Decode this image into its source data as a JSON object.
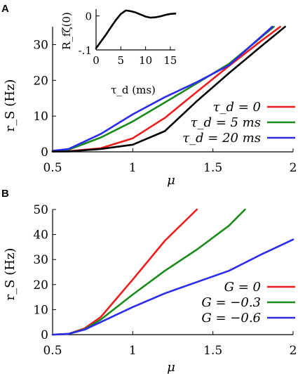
{
  "chart_data": [
    {
      "panel": "A",
      "type": "line",
      "xlabel": "μ",
      "ylabel": "r_S (Hz)",
      "xlim": [
        0.5,
        2
      ],
      "ylim": [
        0,
        35
      ],
      "xticks": [
        0.5,
        1,
        1.5,
        2
      ],
      "xtick_labels": [
        "0.5",
        "1",
        "1.5",
        "2"
      ],
      "yticks": [
        0,
        10,
        20,
        30
      ],
      "ytick_labels": [
        "0",
        "10",
        "20",
        "30"
      ],
      "legend_position": "right",
      "series": [
        {
          "name": "τ_d = 0",
          "color": "#ee1c1c",
          "x": [
            0.5,
            0.6,
            0.8,
            1.0,
            1.2,
            1.4,
            1.6,
            1.8,
            1.92
          ],
          "y": [
            0.1,
            0.2,
            1.0,
            3.8,
            9.5,
            16.8,
            24.0,
            31.0,
            35.0
          ]
        },
        {
          "name": "τ_d = 5 ms",
          "color": "#1a8a1a",
          "x": [
            0.5,
            0.6,
            0.8,
            1.0,
            1.2,
            1.4,
            1.6,
            1.88
          ],
          "y": [
            0.2,
            0.6,
            4.0,
            8.5,
            13.8,
            19.2,
            24.6,
            35.0
          ]
        },
        {
          "name": "τ_d = 20 ms",
          "color": "#2b2bee",
          "x": [
            0.5,
            0.6,
            0.8,
            1.0,
            1.2,
            1.4,
            1.6,
            1.87
          ],
          "y": [
            0.3,
            0.8,
            5.0,
            10.5,
            15.3,
            19.5,
            24.2,
            35.0
          ]
        },
        {
          "name": "",
          "color": "#000000",
          "x": [
            0.5,
            0.6,
            0.8,
            1.0,
            1.2,
            1.4,
            1.6,
            1.8,
            1.95
          ],
          "y": [
            0.1,
            0.1,
            0.8,
            2.0,
            5.8,
            14.2,
            22.0,
            29.5,
            35.0
          ]
        }
      ]
    },
    {
      "panel": "A-inset",
      "type": "line",
      "xlabel": "τ_d (ms)",
      "ylabel": "R_fζ(0)",
      "xlim": [
        0,
        16
      ],
      "ylim": [
        -0.1,
        0.02
      ],
      "xticks": [
        0,
        5,
        10,
        15
      ],
      "xtick_labels": [
        "0",
        "5",
        "10",
        "15"
      ],
      "yticks": [
        -0.1,
        0
      ],
      "ytick_labels": [
        "-.1",
        "0"
      ],
      "series": [
        {
          "color": "#000000",
          "x": [
            0,
            1,
            2,
            3,
            4,
            5,
            6,
            7,
            8,
            9,
            10,
            11,
            12,
            13,
            14,
            15,
            16
          ],
          "y": [
            -0.095,
            -0.075,
            -0.055,
            -0.033,
            -0.012,
            0.006,
            0.016,
            0.014,
            0.01,
            0.004,
            -0.002,
            -0.005,
            -0.004,
            -0.001,
            0.003,
            0.006,
            0.007
          ]
        }
      ]
    },
    {
      "panel": "B",
      "type": "line",
      "xlabel": "μ",
      "ylabel": "r_S (Hz)",
      "xlim": [
        0.5,
        2
      ],
      "ylim": [
        0,
        50
      ],
      "xticks": [
        0.5,
        1,
        1.5,
        2
      ],
      "xtick_labels": [
        "0.5",
        "1",
        "1.5",
        "2"
      ],
      "yticks": [
        0,
        10,
        20,
        30,
        40,
        50
      ],
      "ytick_labels": [
        "0",
        "10",
        "20",
        "30",
        "40",
        "50"
      ],
      "legend_position": "lower right",
      "series": [
        {
          "name": "G = 0",
          "color": "#ee1c1c",
          "x": [
            0.5,
            0.6,
            0.7,
            0.8,
            1.0,
            1.2,
            1.4
          ],
          "y": [
            0.0,
            0.3,
            2.5,
            7.0,
            22.0,
            37.5,
            50.0
          ]
        },
        {
          "name": "G = −0.3",
          "color": "#1a8a1a",
          "x": [
            0.5,
            0.6,
            0.7,
            0.8,
            1.0,
            1.2,
            1.4,
            1.6,
            1.7
          ],
          "y": [
            0.0,
            0.3,
            2.2,
            6.0,
            16.0,
            25.5,
            34.0,
            43.5,
            50.0
          ]
        },
        {
          "name": "G = −0.6",
          "color": "#2b2bee",
          "x": [
            0.5,
            0.6,
            0.7,
            0.8,
            1.0,
            1.2,
            1.4,
            1.6,
            1.8,
            2.0
          ],
          "y": [
            0.0,
            0.3,
            2.0,
            5.0,
            11.0,
            16.5,
            21.0,
            25.5,
            32.0,
            38.0
          ]
        }
      ]
    }
  ]
}
